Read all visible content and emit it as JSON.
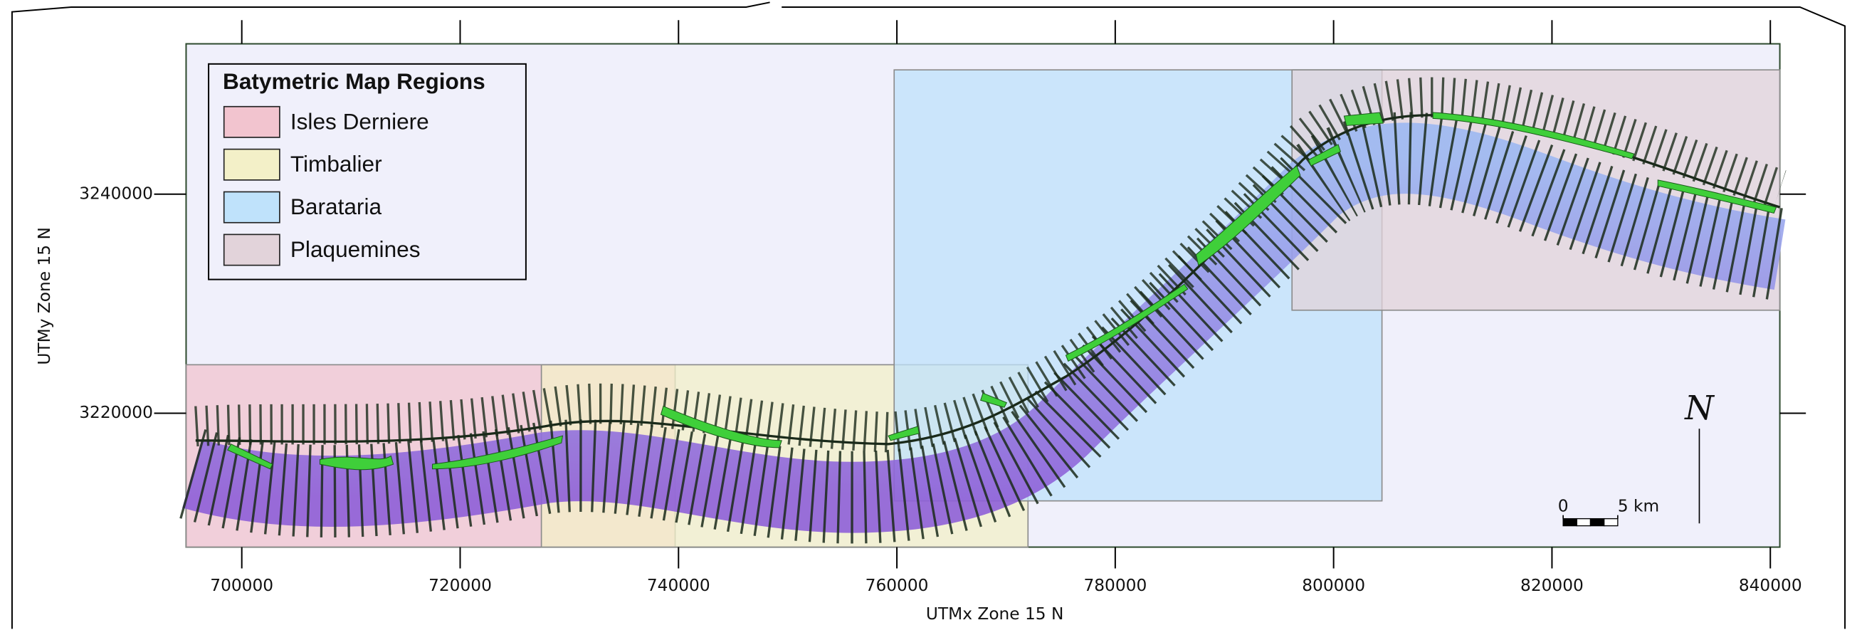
{
  "chart_data": {
    "type": "map",
    "xlabel": "UTMx Zone 15 N",
    "ylabel": "UTMy Zone 15 N",
    "xlim": [
      694900,
      840870
    ],
    "ylim": [
      3207780,
      3253730
    ],
    "xticks": [
      700000,
      720000,
      740000,
      760000,
      780000,
      800000,
      820000,
      840000
    ],
    "yticks": [
      3220000,
      3240000
    ],
    "legend": {
      "title": "Batymetric Map Regions"
    },
    "regions": [
      {
        "name": "Isles Derniere",
        "color": "#f2c4cf",
        "xlim": [
          694900,
          739690
        ],
        "ylim": [
          3207780,
          3224430
        ]
      },
      {
        "name": "Timbalier",
        "color": "#f3f0c8",
        "xlim": [
          727440,
          772010
        ],
        "ylim": [
          3207780,
          3224430
        ]
      },
      {
        "name": "Barataria",
        "color": "#bfe2fb",
        "xlim": [
          759750,
          804430
        ],
        "ylim": [
          3212000,
          3251350
        ]
      },
      {
        "name": "Plaquemines",
        "color": "#e2d3da",
        "xlim": [
          796190,
          840870
        ],
        "ylim": [
          3229410,
          3251350
        ]
      }
    ],
    "scale_bar": {
      "ticks": [
        0,
        {
          "value": 5000,
          "label": "5 km"
        }
      ]
    },
    "north": {
      "label": "N"
    }
  }
}
